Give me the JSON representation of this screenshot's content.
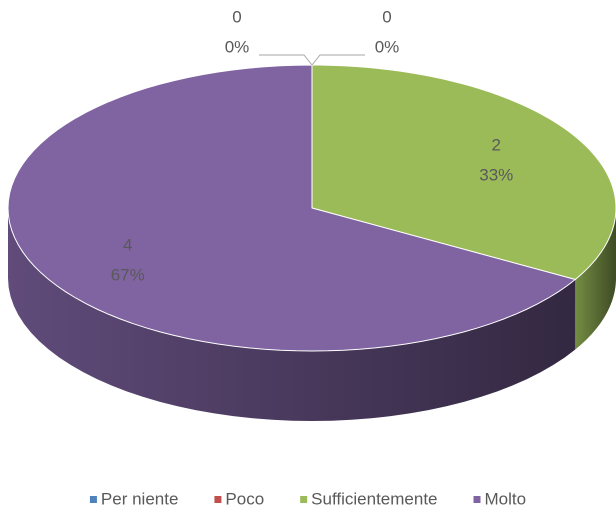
{
  "chart_data": {
    "type": "pie",
    "categories": [
      "Per niente",
      "Poco",
      "Sufficientemente",
      "Molto"
    ],
    "values": [
      0,
      0,
      2,
      4
    ],
    "percent_labels": [
      "0%",
      "0%",
      "33%",
      "67%"
    ],
    "colors": [
      "#4f81bd",
      "#c0504d",
      "#9bbb59",
      "#8064a2"
    ],
    "legend": "bottom"
  }
}
